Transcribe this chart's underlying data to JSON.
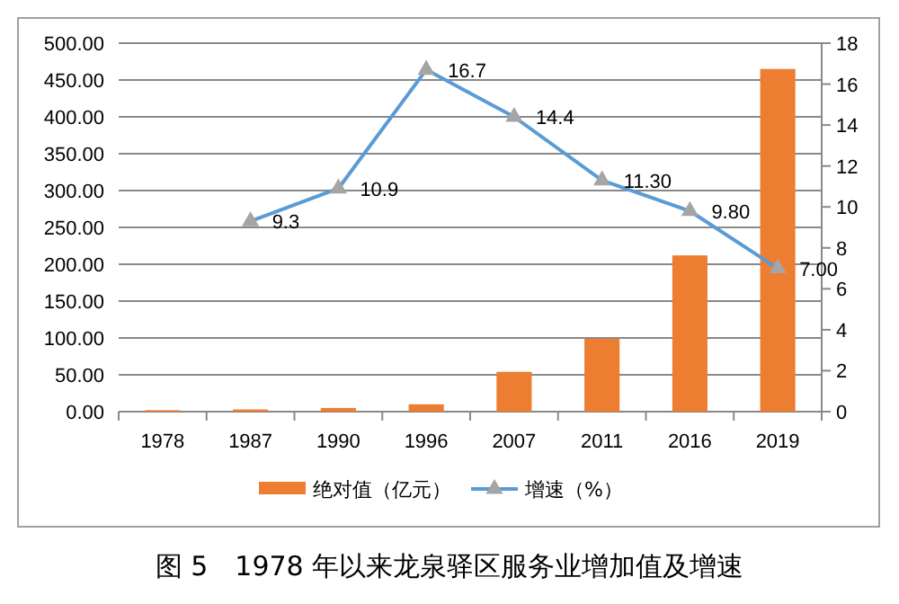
{
  "chart_data": {
    "type": "bar",
    "categories": [
      "1978",
      "1987",
      "1990",
      "1996",
      "2007",
      "2011",
      "2016",
      "2019"
    ],
    "series": [
      {
        "name": "绝对值（亿元）",
        "color": "#ed7d31",
        "values": [
          2,
          3,
          5,
          10,
          54,
          99,
          212,
          465
        ]
      },
      {
        "name": "增速（%）",
        "type": "line",
        "axis": "y2",
        "color": "#5b9bd5",
        "marker": "triangle",
        "values": [
          null,
          9.3,
          10.9,
          16.7,
          14.4,
          11.3,
          9.8,
          7.0
        ],
        "value_labels": [
          null,
          "9.3",
          "10.9",
          "16.7",
          "14.4",
          "11.30",
          "9.80",
          "7.00"
        ]
      }
    ],
    "ylim": [
      0,
      500
    ],
    "yticks": [
      {
        "value": 0,
        "label": "0.00"
      },
      {
        "value": 50,
        "label": "50.00"
      },
      {
        "value": 100,
        "label": "100.00"
      },
      {
        "value": 150,
        "label": "150.00"
      },
      {
        "value": 200,
        "label": "200.00"
      },
      {
        "value": 250,
        "label": "250.00"
      },
      {
        "value": 300,
        "label": "300.00"
      },
      {
        "value": 350,
        "label": "350.00"
      },
      {
        "value": 400,
        "label": "400.00"
      },
      {
        "value": 450,
        "label": "450.00"
      },
      {
        "value": 500,
        "label": "500.00"
      }
    ],
    "y2lim": [
      0,
      18
    ],
    "y2ticks": [
      0,
      2,
      4,
      6,
      8,
      10,
      12,
      14,
      16,
      18
    ],
    "grid": "y",
    "legend": "bottom",
    "annotations": [
      "图 5　1978 年以来龙泉驿区服务业增加值及增速"
    ]
  }
}
